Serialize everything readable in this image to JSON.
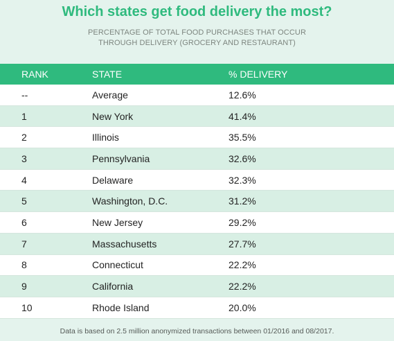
{
  "title": "Which states get food delivery the most?",
  "subtitle_lines": [
    "PERCENTAGE OF TOTAL FOOD PURCHASES THAT OCCUR",
    "THROUGH DELIVERY (GROCERY AND RESTAURANT)"
  ],
  "columns": [
    "RANK",
    "STATE",
    "% DELIVERY"
  ],
  "rows": [
    {
      "rank": "--",
      "state": "Average",
      "pct": "12.6%"
    },
    {
      "rank": "1",
      "state": "New York",
      "pct": "41.4%"
    },
    {
      "rank": "2",
      "state": "Illinois",
      "pct": "35.5%"
    },
    {
      "rank": "3",
      "state": "Pennsylvania",
      "pct": "32.6%"
    },
    {
      "rank": "4",
      "state": "Delaware",
      "pct": "32.3%"
    },
    {
      "rank": "5",
      "state": "Washington, D.C.",
      "pct": "31.2%"
    },
    {
      "rank": "6",
      "state": "New Jersey",
      "pct": "29.2%"
    },
    {
      "rank": "7",
      "state": "Massachusetts",
      "pct": "27.7%"
    },
    {
      "rank": "8",
      "state": "Connecticut",
      "pct": "22.2%"
    },
    {
      "rank": "9",
      "state": "California",
      "pct": "22.2%"
    },
    {
      "rank": "10",
      "state": "Rhode Island",
      "pct": "20.0%"
    }
  ],
  "footnote": "Data is based on 2.5 million anonymized transactions between 01/2016 and 08/2017.",
  "colors": {
    "accent": "#2fba7e",
    "background": "#e4f3ed",
    "row_alt": "#d8efe4"
  },
  "chart_data": {
    "type": "table",
    "title": "Which states get food delivery the most?",
    "subtitle": "PERCENTAGE OF TOTAL FOOD PURCHASES THAT OCCUR THROUGH DELIVERY (GROCERY AND RESTAURANT)",
    "columns": [
      "RANK",
      "STATE",
      "% DELIVERY"
    ],
    "rows": [
      [
        "--",
        "Average",
        "12.6%"
      ],
      [
        "1",
        "New York",
        "41.4%"
      ],
      [
        "2",
        "Illinois",
        "35.5%"
      ],
      [
        "3",
        "Pennsylvania",
        "32.6%"
      ],
      [
        "4",
        "Delaware",
        "32.3%"
      ],
      [
        "5",
        "Washington, D.C.",
        "31.2%"
      ],
      [
        "6",
        "New Jersey",
        "29.2%"
      ],
      [
        "7",
        "Massachusetts",
        "27.7%"
      ],
      [
        "8",
        "Connecticut",
        "22.2%"
      ],
      [
        "9",
        "California",
        "22.2%"
      ],
      [
        "10",
        "Rhode Island",
        "20.0%"
      ]
    ]
  }
}
